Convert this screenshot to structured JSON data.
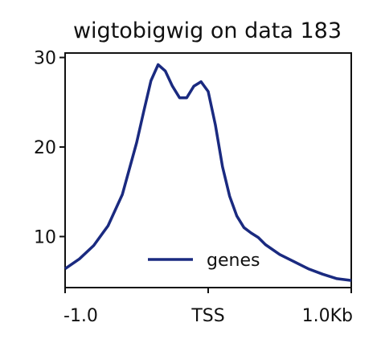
{
  "chart_data": {
    "type": "line",
    "title": "wigtobigwig on data 183",
    "xlabel": "",
    "ylabel": "",
    "x": [
      -1.0,
      -0.9,
      -0.8,
      -0.7,
      -0.6,
      -0.5,
      -0.45,
      -0.4,
      -0.35,
      -0.3,
      -0.25,
      -0.2,
      -0.15,
      -0.1,
      -0.05,
      0.0,
      0.05,
      0.1,
      0.15,
      0.2,
      0.25,
      0.3,
      0.35,
      0.4,
      0.5,
      0.6,
      0.7,
      0.8,
      0.9,
      1.0
    ],
    "x_tick_values": [
      -1.0,
      0.0,
      1.0
    ],
    "x_tick_labels": [
      "-1.0",
      "TSS",
      "1.0Kb"
    ],
    "xlim": [
      -1.0,
      1.0
    ],
    "ylim": [
      4.3,
      30.5
    ],
    "y_ticks": [
      10,
      20,
      30
    ],
    "grid": false,
    "legend_position": "lower-center",
    "series": [
      {
        "name": "genes",
        "color": "#1a2a80",
        "values": [
          6.4,
          7.5,
          9.0,
          11.2,
          14.7,
          20.5,
          24.0,
          27.4,
          29.2,
          28.5,
          26.8,
          25.5,
          25.5,
          26.8,
          27.3,
          26.2,
          22.5,
          17.8,
          14.5,
          12.3,
          11.0,
          10.4,
          9.9,
          9.1,
          8.0,
          7.2,
          6.4,
          5.8,
          5.3,
          5.1
        ]
      }
    ]
  }
}
